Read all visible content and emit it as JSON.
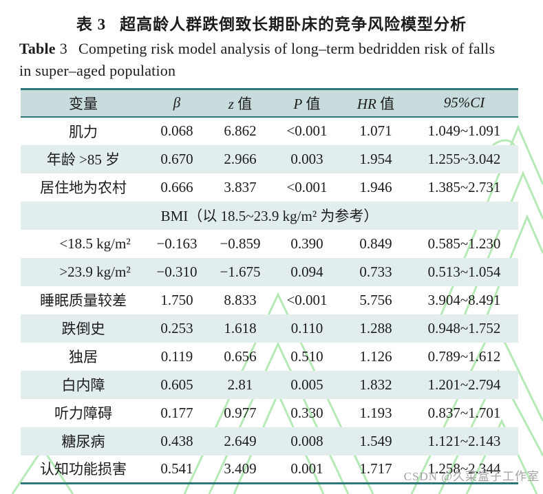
{
  "page": {
    "title_zh_label": "表 3",
    "title_zh_text": "超高龄人群跌倒致长期卧床的竞争风险模型分析",
    "title_en_bold": "Table",
    "title_en_num": "3",
    "title_en_line1": "Competing risk model analysis of long–term bedridden risk of falls",
    "title_en_line2": "in super–aged population"
  },
  "table": {
    "columns": [
      {
        "symbol": "",
        "rest": "变量"
      },
      {
        "symbol": "β",
        "rest": ""
      },
      {
        "symbol": "z",
        "rest": " 值"
      },
      {
        "symbol": "P",
        "rest": " 值"
      },
      {
        "symbol": "HR",
        "rest": " 值"
      },
      {
        "symbol": "95%CI",
        "rest": ""
      }
    ],
    "rows": [
      {
        "variable": "肌力",
        "beta": "0.068",
        "z": "6.862",
        "p": "<0.001",
        "hr": "1.071",
        "ci": "1.049~1.091",
        "indent": false,
        "span": false
      },
      {
        "variable": "年龄 >85 岁",
        "beta": "0.670",
        "z": "2.966",
        "p": "0.003",
        "hr": "1.954",
        "ci": "1.255~3.042",
        "indent": false,
        "span": false
      },
      {
        "variable": "居住地为农村",
        "beta": "0.666",
        "z": "3.837",
        "p": "<0.001",
        "hr": "1.946",
        "ci": "1.385~2.731",
        "indent": false,
        "span": false
      },
      {
        "variable": "BMI（以 18.5~23.9 kg/m² 为参考）",
        "beta": "",
        "z": "",
        "p": "",
        "hr": "",
        "ci": "",
        "indent": false,
        "span": true
      },
      {
        "variable": "<18.5 kg/m²",
        "beta": "−0.163",
        "z": "−0.859",
        "p": "0.390",
        "hr": "0.849",
        "ci": "0.585~1.230",
        "indent": true,
        "span": false
      },
      {
        "variable": ">23.9 kg/m²",
        "beta": "−0.310",
        "z": "−1.675",
        "p": "0.094",
        "hr": "0.733",
        "ci": "0.513~1.054",
        "indent": true,
        "span": false
      },
      {
        "variable": "睡眠质量较差",
        "beta": "1.750",
        "z": "8.833",
        "p": "<0.001",
        "hr": "5.756",
        "ci": "3.904~8.491",
        "indent": false,
        "span": false
      },
      {
        "variable": "跌倒史",
        "beta": "0.253",
        "z": "1.618",
        "p": "0.110",
        "hr": "1.288",
        "ci": "0.948~1.752",
        "indent": false,
        "span": false
      },
      {
        "variable": "独居",
        "beta": "0.119",
        "z": "0.656",
        "p": "0.510",
        "hr": "1.126",
        "ci": "0.789~1.612",
        "indent": false,
        "span": false
      },
      {
        "variable": "白内障",
        "beta": "0.605",
        "z": "2.81",
        "p": "0.005",
        "hr": "1.832",
        "ci": "1.201~2.794",
        "indent": false,
        "span": false
      },
      {
        "variable": "听力障碍",
        "beta": "0.177",
        "z": "0.977",
        "p": "0.330",
        "hr": "1.193",
        "ci": "0.837~1.701",
        "indent": false,
        "span": false
      },
      {
        "variable": "糖尿病",
        "beta": "0.438",
        "z": "2.649",
        "p": "0.008",
        "hr": "1.549",
        "ci": "1.121~2.143",
        "indent": false,
        "span": false
      },
      {
        "variable": "认知功能损害",
        "beta": "0.541",
        "z": "3.409",
        "p": "0.001",
        "hr": "1.717",
        "ci": "1.258~2.344",
        "indent": false,
        "span": false
      }
    ]
  },
  "watermark": {
    "text": "CSDN @久菜盒子工作室"
  },
  "colors": {
    "table_border": "#2d767a",
    "header_bg": "#c8dcdd",
    "zebra_bg": "#e2edee",
    "pattern_green": "#a9e6a9",
    "watermark_gray": "#a3a3a3"
  }
}
